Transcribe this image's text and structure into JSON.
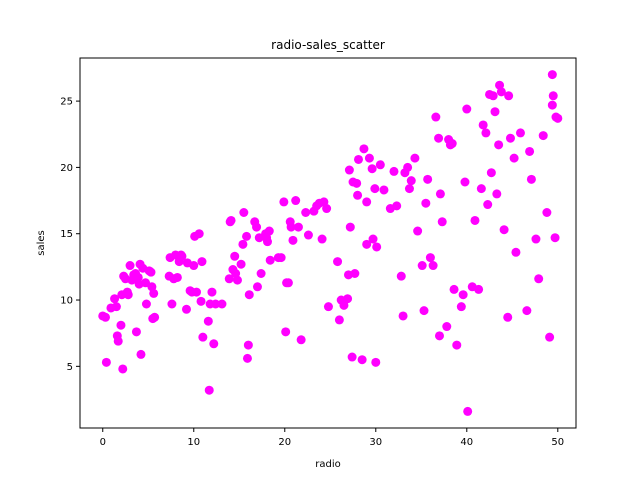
{
  "chart_data": {
    "type": "scatter",
    "title": "radio-sales_scatter",
    "xlabel": "radio",
    "ylabel": "sales",
    "xlim": [
      -2.5,
      52.0
    ],
    "ylim": [
      0.35,
      28.25
    ],
    "xticks": [
      0,
      10,
      20,
      30,
      40,
      50
    ],
    "yticks": [
      5,
      10,
      15,
      20,
      25
    ],
    "grid": false,
    "legend": "none",
    "marker_color": "#ff00ff",
    "series": [
      {
        "points": [
          [
            0.0,
            8.8
          ],
          [
            0.3,
            8.7
          ],
          [
            0.4,
            5.3
          ],
          [
            0.9,
            9.4
          ],
          [
            1.3,
            10.1
          ],
          [
            1.5,
            9.5
          ],
          [
            1.6,
            7.3
          ],
          [
            1.7,
            6.9
          ],
          [
            2.0,
            8.1
          ],
          [
            2.1,
            10.4
          ],
          [
            2.2,
            4.8
          ],
          [
            2.3,
            11.8
          ],
          [
            2.5,
            11.6
          ],
          [
            2.7,
            10.6
          ],
          [
            2.8,
            10.4
          ],
          [
            3.0,
            12.6
          ],
          [
            3.2,
            11.5
          ],
          [
            3.4,
            11.9
          ],
          [
            3.6,
            12.0
          ],
          [
            3.7,
            7.6
          ],
          [
            3.9,
            11.7
          ],
          [
            4.0,
            11.2
          ],
          [
            4.1,
            12.7
          ],
          [
            4.2,
            5.9
          ],
          [
            4.4,
            12.4
          ],
          [
            4.7,
            11.3
          ],
          [
            4.8,
            9.7
          ],
          [
            5.1,
            12.2
          ],
          [
            5.3,
            12.1
          ],
          [
            5.4,
            11.0
          ],
          [
            5.5,
            8.6
          ],
          [
            5.6,
            10.5
          ],
          [
            5.7,
            8.7
          ],
          [
            7.3,
            11.8
          ],
          [
            7.4,
            13.2
          ],
          [
            7.6,
            9.7
          ],
          [
            7.8,
            11.6
          ],
          [
            8.0,
            13.4
          ],
          [
            8.2,
            11.7
          ],
          [
            8.4,
            12.9
          ],
          [
            8.6,
            13.4
          ],
          [
            8.7,
            13.3
          ],
          [
            9.2,
            9.3
          ],
          [
            9.3,
            12.8
          ],
          [
            9.6,
            10.7
          ],
          [
            9.8,
            10.6
          ],
          [
            10.0,
            12.6
          ],
          [
            10.1,
            14.8
          ],
          [
            10.3,
            10.6
          ],
          [
            10.6,
            15.0
          ],
          [
            10.8,
            9.9
          ],
          [
            10.9,
            12.9
          ],
          [
            11.0,
            7.2
          ],
          [
            11.6,
            8.4
          ],
          [
            11.7,
            3.2
          ],
          [
            11.8,
            9.7
          ],
          [
            12.0,
            10.6
          ],
          [
            12.2,
            6.7
          ],
          [
            12.4,
            9.7
          ],
          [
            13.1,
            9.7
          ],
          [
            13.9,
            11.6
          ],
          [
            14.0,
            15.9
          ],
          [
            14.1,
            16.0
          ],
          [
            14.3,
            12.3
          ],
          [
            14.5,
            13.3
          ],
          [
            14.8,
            11.5
          ],
          [
            14.6,
            12.0
          ],
          [
            15.2,
            12.7
          ],
          [
            15.4,
            14.2
          ],
          [
            15.5,
            16.6
          ],
          [
            15.8,
            14.8
          ],
          [
            15.9,
            5.6
          ],
          [
            16.0,
            6.6
          ],
          [
            16.1,
            10.4
          ],
          [
            16.7,
            15.9
          ],
          [
            16.9,
            15.5
          ],
          [
            17.0,
            11.0
          ],
          [
            17.2,
            14.7
          ],
          [
            17.4,
            12.0
          ],
          [
            17.9,
            15.0
          ],
          [
            18.0,
            14.7
          ],
          [
            18.1,
            14.4
          ],
          [
            18.3,
            15.2
          ],
          [
            18.4,
            13.0
          ],
          [
            19.3,
            13.2
          ],
          [
            19.6,
            13.2
          ],
          [
            19.9,
            17.4
          ],
          [
            20.1,
            7.6
          ],
          [
            20.2,
            11.3
          ],
          [
            20.4,
            11.3
          ],
          [
            20.6,
            15.9
          ],
          [
            20.7,
            15.5
          ],
          [
            20.9,
            14.5
          ],
          [
            21.2,
            17.5
          ],
          [
            21.5,
            15.5
          ],
          [
            21.8,
            7.0
          ],
          [
            22.3,
            16.6
          ],
          [
            22.6,
            14.9
          ],
          [
            23.2,
            16.7
          ],
          [
            23.5,
            17.1
          ],
          [
            23.8,
            17.3
          ],
          [
            24.1,
            14.6
          ],
          [
            24.3,
            17.4
          ],
          [
            24.6,
            16.9
          ],
          [
            24.8,
            9.5
          ],
          [
            25.8,
            12.9
          ],
          [
            26.0,
            8.5
          ],
          [
            26.2,
            10.0
          ],
          [
            26.5,
            9.6
          ],
          [
            26.9,
            10.1
          ],
          [
            27.0,
            11.9
          ],
          [
            27.1,
            19.8
          ],
          [
            27.2,
            15.5
          ],
          [
            27.4,
            5.7
          ],
          [
            27.5,
            18.9
          ],
          [
            27.7,
            12.0
          ],
          [
            27.9,
            18.8
          ],
          [
            28.0,
            17.9
          ],
          [
            28.1,
            20.6
          ],
          [
            28.5,
            5.5
          ],
          [
            28.7,
            21.4
          ],
          [
            29.0,
            14.2
          ],
          [
            29.0,
            17.4
          ],
          [
            29.3,
            20.7
          ],
          [
            29.6,
            19.9
          ],
          [
            29.7,
            14.6
          ],
          [
            29.9,
            18.4
          ],
          [
            30.0,
            5.3
          ],
          [
            30.1,
            14.0
          ],
          [
            30.5,
            20.2
          ],
          [
            30.9,
            18.3
          ],
          [
            31.6,
            16.9
          ],
          [
            32.0,
            19.7
          ],
          [
            32.3,
            17.1
          ],
          [
            32.8,
            11.8
          ],
          [
            33.0,
            8.8
          ],
          [
            33.2,
            19.6
          ],
          [
            33.5,
            20.0
          ],
          [
            33.7,
            18.4
          ],
          [
            33.9,
            19.0
          ],
          [
            34.3,
            20.7
          ],
          [
            34.6,
            15.2
          ],
          [
            35.1,
            12.6
          ],
          [
            35.3,
            9.2
          ],
          [
            35.5,
            17.3
          ],
          [
            35.7,
            19.1
          ],
          [
            36.0,
            13.2
          ],
          [
            36.3,
            12.6
          ],
          [
            36.6,
            23.8
          ],
          [
            36.9,
            22.2
          ],
          [
            37.0,
            7.3
          ],
          [
            37.1,
            18.0
          ],
          [
            37.3,
            15.9
          ],
          [
            37.8,
            8.0
          ],
          [
            38.0,
            22.1
          ],
          [
            38.2,
            21.7
          ],
          [
            38.4,
            21.8
          ],
          [
            38.6,
            10.8
          ],
          [
            38.9,
            6.6
          ],
          [
            39.4,
            9.5
          ],
          [
            39.6,
            10.4
          ],
          [
            39.8,
            18.9
          ],
          [
            40.0,
            24.4
          ],
          [
            40.1,
            1.6
          ],
          [
            40.6,
            11.0
          ],
          [
            40.9,
            16.0
          ],
          [
            41.3,
            10.8
          ],
          [
            41.6,
            18.4
          ],
          [
            41.8,
            23.2
          ],
          [
            42.1,
            22.6
          ],
          [
            42.3,
            17.2
          ],
          [
            42.5,
            25.5
          ],
          [
            42.7,
            19.6
          ],
          [
            42.9,
            25.4
          ],
          [
            43.1,
            24.2
          ],
          [
            43.3,
            18.0
          ],
          [
            43.5,
            21.7
          ],
          [
            43.6,
            26.2
          ],
          [
            43.8,
            25.7
          ],
          [
            44.1,
            15.3
          ],
          [
            44.5,
            8.7
          ],
          [
            44.6,
            25.4
          ],
          [
            44.8,
            22.2
          ],
          [
            45.2,
            20.7
          ],
          [
            45.4,
            13.6
          ],
          [
            45.9,
            22.6
          ],
          [
            46.6,
            9.2
          ],
          [
            46.9,
            21.2
          ],
          [
            47.1,
            19.1
          ],
          [
            47.6,
            14.6
          ],
          [
            47.9,
            11.6
          ],
          [
            48.4,
            22.4
          ],
          [
            48.8,
            16.6
          ],
          [
            49.1,
            7.2
          ],
          [
            49.4,
            27.0
          ],
          [
            49.4,
            24.7
          ],
          [
            49.5,
            25.4
          ],
          [
            49.7,
            14.7
          ],
          [
            49.8,
            23.8
          ],
          [
            50.0,
            23.7
          ]
        ]
      }
    ]
  }
}
